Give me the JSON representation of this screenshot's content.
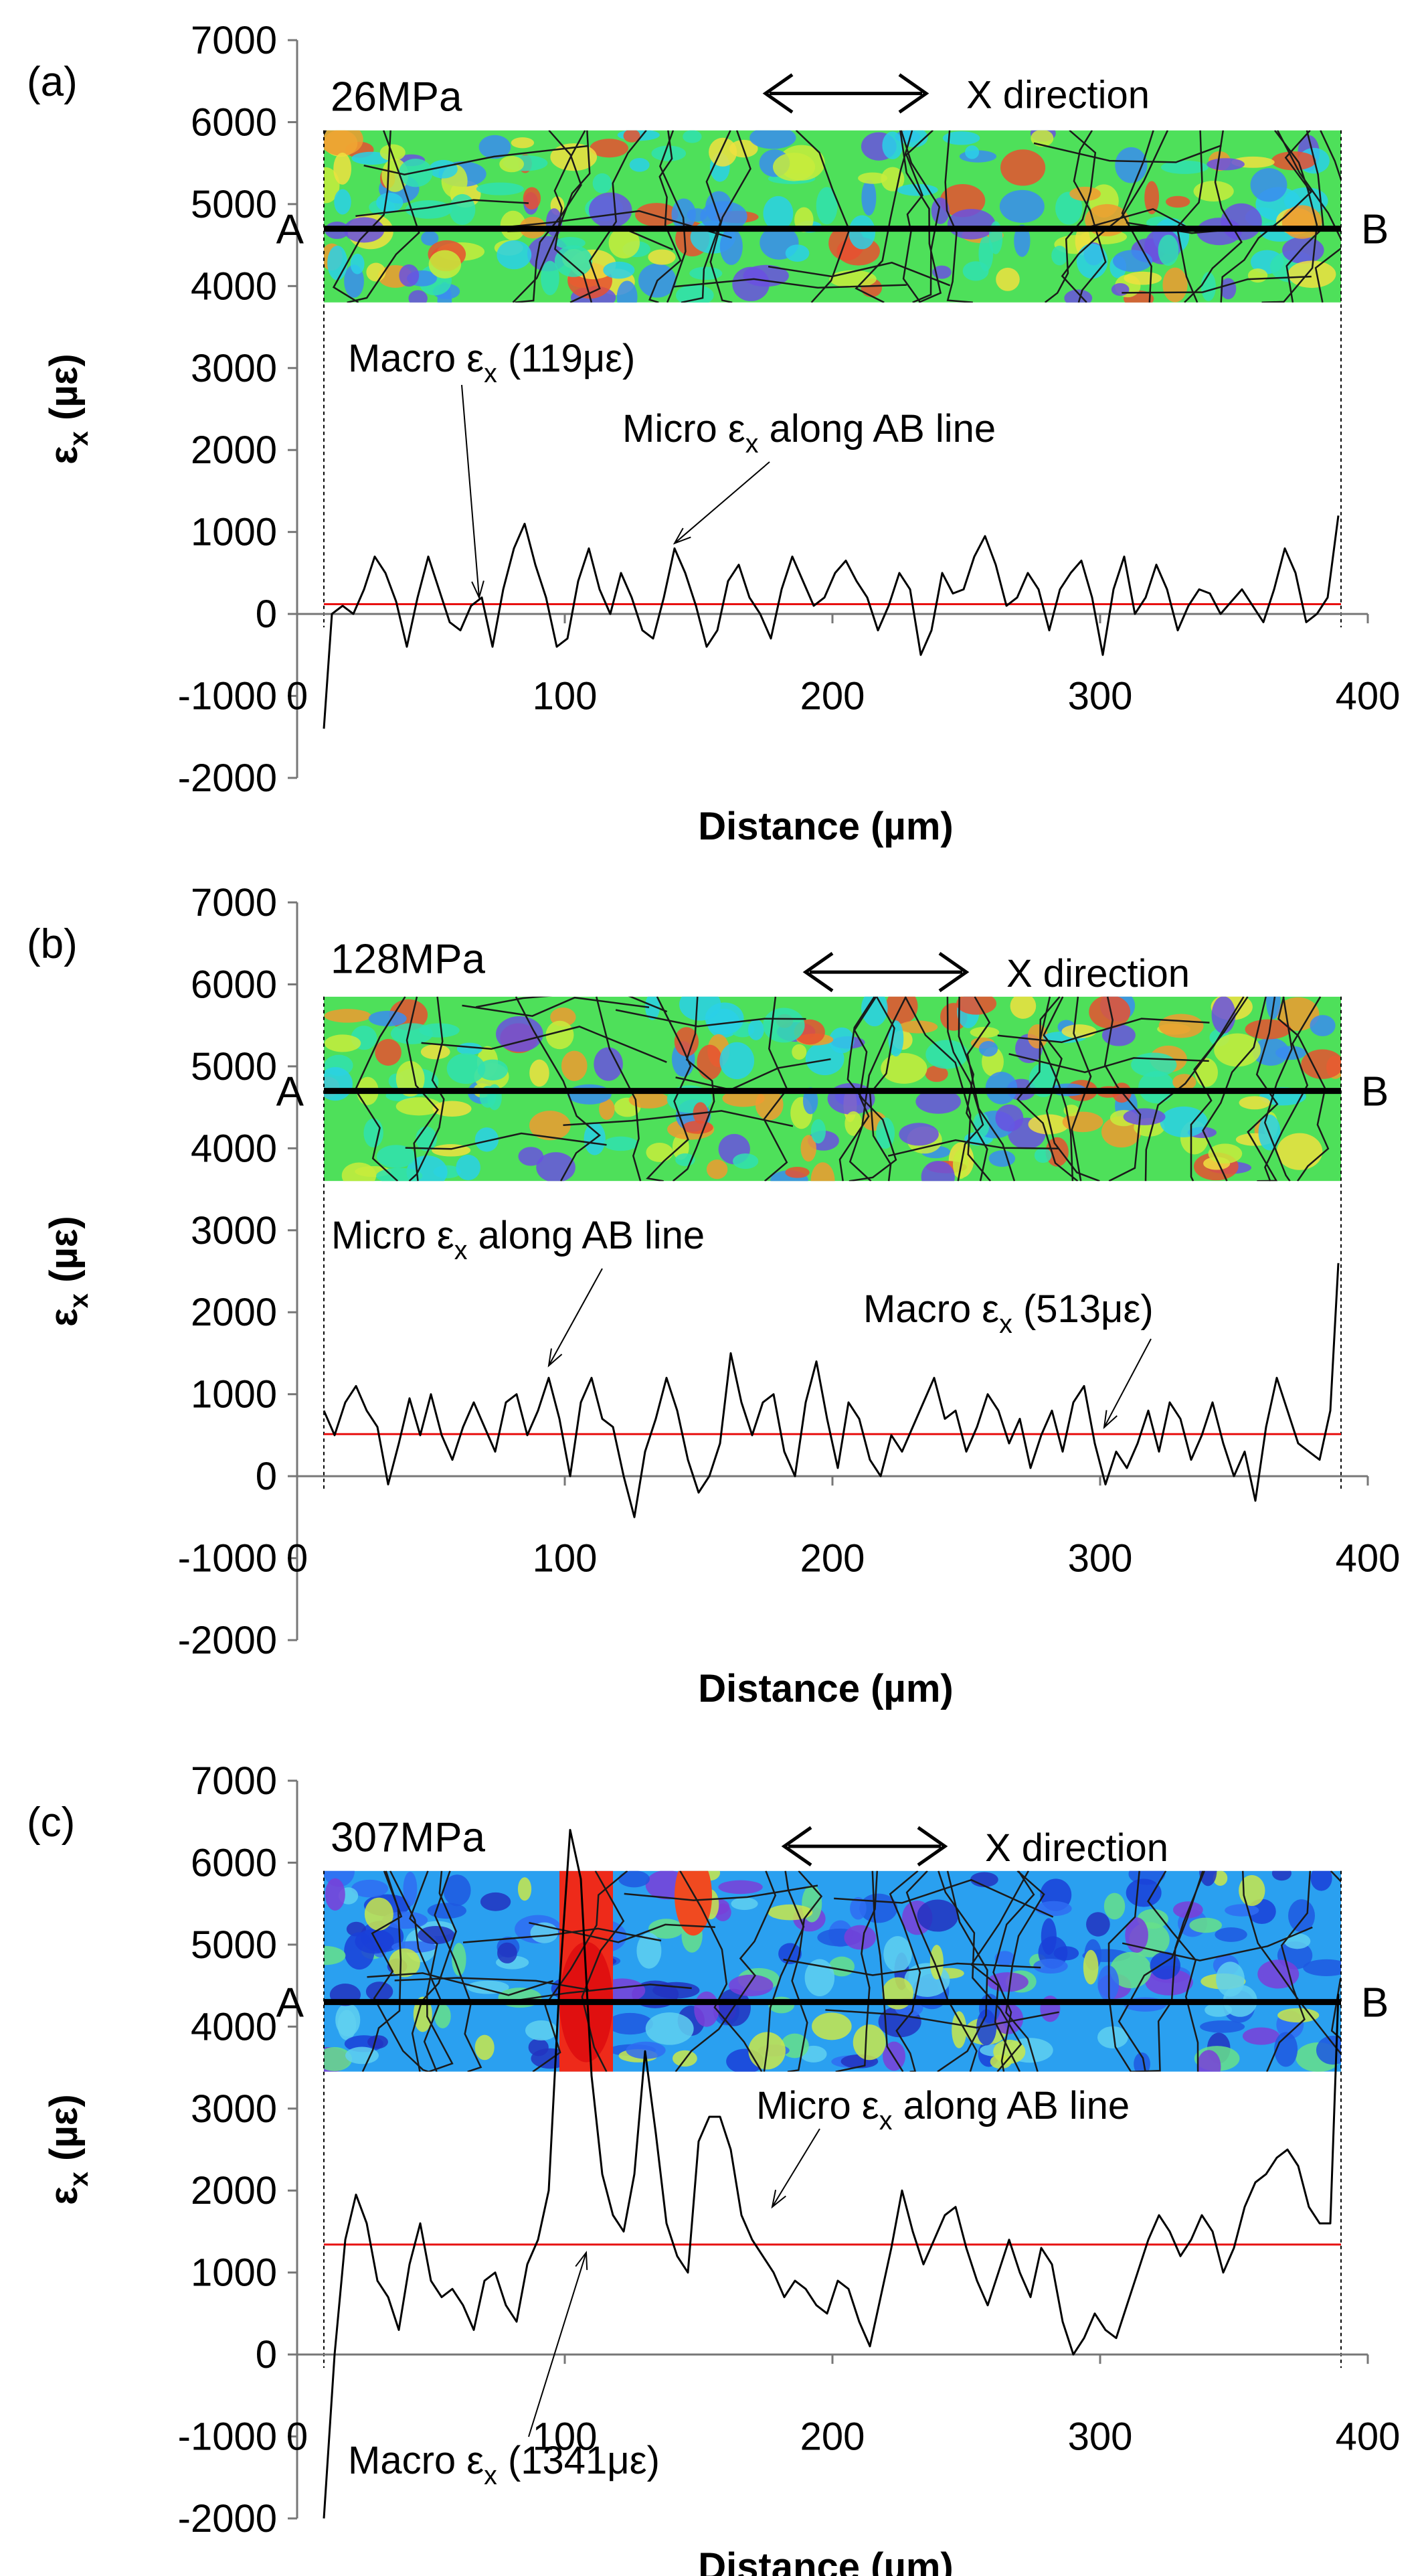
{
  "chart_data": [
    {
      "type": "line",
      "panel": "(a)",
      "stress_label": "26MPa",
      "xlabel": "Distance (µm)",
      "ylabel_main": "ε",
      "ylabel_sub": "x",
      "ylabel_unit": " (µε)",
      "xlim": [
        0,
        400
      ],
      "ylim": [
        -2000,
        7000
      ],
      "x_ticks": [
        0,
        100,
        200,
        300,
        400
      ],
      "y_ticks": [
        7000,
        6000,
        5000,
        4000,
        3000,
        2000,
        1000,
        0,
        -1000,
        -2000
      ],
      "direction_label": "X direction",
      "point_a": "A",
      "point_b": "B",
      "line_start": 10,
      "line_end": 390,
      "map_range": [
        3800,
        5900
      ],
      "ab_line_y": 4700,
      "map_style": "mid",
      "macro": {
        "value": 119,
        "text_main": "Macro ε",
        "text_sub": "x",
        "text_rest": " (119με)"
      },
      "micro_label": {
        "text_main": "Micro ε",
        "text_sub": "x",
        "text_rest": " along AB line"
      },
      "series": [
        {
          "name": "Micro εx along AB line",
          "x": [
            10,
            13,
            17,
            21,
            25,
            29,
            33,
            37,
            41,
            45,
            49,
            53,
            57,
            61,
            65,
            69,
            73,
            77,
            81,
            85,
            89,
            93,
            97,
            101,
            105,
            109,
            113,
            117,
            121,
            125,
            129,
            133,
            137,
            141,
            145,
            149,
            153,
            157,
            161,
            165,
            169,
            173,
            177,
            181,
            185,
            189,
            193,
            197,
            201,
            205,
            209,
            213,
            217,
            221,
            225,
            229,
            233,
            237,
            241,
            245,
            249,
            253,
            257,
            261,
            265,
            269,
            273,
            277,
            281,
            285,
            289,
            293,
            297,
            301,
            305,
            309,
            313,
            317,
            321,
            325,
            329,
            333,
            337,
            341,
            345,
            349,
            353,
            357,
            361,
            365,
            369,
            373,
            377,
            381,
            385,
            389
          ],
          "values": [
            -1400,
            0,
            100,
            0,
            300,
            700,
            500,
            150,
            -400,
            200,
            700,
            300,
            -100,
            -200,
            100,
            200,
            -400,
            300,
            800,
            1100,
            600,
            200,
            -400,
            -300,
            400,
            800,
            300,
            0,
            500,
            200,
            -200,
            -300,
            200,
            800,
            500,
            100,
            -400,
            -200,
            400,
            600,
            200,
            0,
            -300,
            300,
            700,
            400,
            100,
            200,
            500,
            650,
            400,
            200,
            -200,
            100,
            500,
            300,
            -500,
            -200,
            500,
            250,
            300,
            700,
            950,
            600,
            100,
            200,
            500,
            300,
            -200,
            300,
            500,
            650,
            200,
            -500,
            300,
            700,
            0,
            200,
            600,
            300,
            -200,
            100,
            300,
            250,
            0,
            150,
            300,
            100,
            -100,
            300,
            800,
            500,
            -100,
            0,
            200,
            1200
          ]
        }
      ]
    },
    {
      "type": "line",
      "panel": "(b)",
      "stress_label": "128MPa",
      "xlabel": "Distance (µm)",
      "ylabel_main": "ε",
      "ylabel_sub": "x",
      "ylabel_unit": " (µε)",
      "xlim": [
        0,
        400
      ],
      "ylim": [
        -2000,
        7000
      ],
      "x_ticks": [
        0,
        100,
        200,
        300,
        400
      ],
      "y_ticks": [
        7000,
        6000,
        5000,
        4000,
        3000,
        2000,
        1000,
        0,
        -1000,
        -2000
      ],
      "direction_label": "X direction",
      "point_a": "A",
      "point_b": "B",
      "line_start": 10,
      "line_end": 390,
      "map_range": [
        3600,
        5850
      ],
      "ab_line_y": 4700,
      "map_style": "mid",
      "macro": {
        "value": 513,
        "text_main": "Macro ε",
        "text_sub": "x",
        "text_rest": " (513με)"
      },
      "micro_label": {
        "text_main": "Micro ε",
        "text_sub": "x",
        "text_rest": " along AB line"
      },
      "series": [
        {
          "name": "Micro εx along AB line",
          "x": [
            10,
            14,
            18,
            22,
            26,
            30,
            34,
            38,
            42,
            46,
            50,
            54,
            58,
            62,
            66,
            70,
            74,
            78,
            82,
            86,
            90,
            94,
            98,
            102,
            106,
            110,
            114,
            118,
            122,
            126,
            130,
            134,
            138,
            142,
            146,
            150,
            154,
            158,
            162,
            166,
            170,
            174,
            178,
            182,
            186,
            190,
            194,
            198,
            202,
            206,
            210,
            214,
            218,
            222,
            226,
            230,
            234,
            238,
            242,
            246,
            250,
            254,
            258,
            262,
            266,
            270,
            274,
            278,
            282,
            286,
            290,
            294,
            298,
            302,
            306,
            310,
            314,
            318,
            322,
            326,
            330,
            334,
            338,
            342,
            346,
            350,
            354,
            358,
            362,
            366,
            370,
            374,
            378,
            382,
            386,
            389
          ],
          "values": [
            800,
            500,
            900,
            1100,
            800,
            600,
            -100,
            400,
            950,
            500,
            1000,
            500,
            200,
            600,
            900,
            600,
            300,
            900,
            1000,
            500,
            800,
            1200,
            700,
            0,
            900,
            1200,
            700,
            600,
            0,
            -500,
            300,
            700,
            1200,
            800,
            200,
            -200,
            0,
            400,
            1500,
            900,
            500,
            900,
            1000,
            300,
            0,
            900,
            1400,
            700,
            100,
            900,
            700,
            200,
            0,
            500,
            300,
            600,
            900,
            1200,
            700,
            800,
            300,
            600,
            1000,
            800,
            400,
            700,
            100,
            500,
            800,
            300,
            900,
            1100,
            400,
            -100,
            300,
            100,
            400,
            800,
            300,
            900,
            700,
            200,
            500,
            900,
            400,
            0,
            300,
            -300,
            600,
            1200,
            800,
            400,
            300,
            200,
            800,
            2600
          ]
        }
      ]
    },
    {
      "type": "line",
      "panel": "(c)",
      "stress_label": "307MPa",
      "xlabel": "Distance (µm)",
      "ylabel_main": "ε",
      "ylabel_sub": "x",
      "ylabel_unit": " (µε)",
      "xlim": [
        0,
        400
      ],
      "ylim": [
        -2000,
        7000
      ],
      "x_ticks": [
        0,
        100,
        200,
        300,
        400
      ],
      "y_ticks": [
        7000,
        6000,
        5000,
        4000,
        3000,
        2000,
        1000,
        0,
        -1000,
        -2000
      ],
      "direction_label": "X direction",
      "point_a": "A",
      "point_b": "B",
      "line_start": 10,
      "line_end": 390,
      "map_range": [
        3450,
        5900
      ],
      "ab_line_y": 4300,
      "map_style": "cool",
      "macro": {
        "value": 1341,
        "text_main": "Macro ε",
        "text_sub": "x",
        "text_rest": " (1341με)"
      },
      "micro_label": {
        "text_main": "Micro ε",
        "text_sub": "x",
        "text_rest": " along AB line"
      },
      "series": [
        {
          "name": "Micro εx along AB line",
          "x": [
            10,
            14,
            18,
            22,
            26,
            30,
            34,
            38,
            42,
            46,
            50,
            54,
            58,
            62,
            66,
            70,
            74,
            78,
            82,
            86,
            90,
            94,
            98,
            102,
            106,
            110,
            114,
            118,
            122,
            126,
            130,
            134,
            138,
            142,
            146,
            150,
            154,
            158,
            162,
            166,
            170,
            174,
            178,
            182,
            186,
            190,
            194,
            198,
            202,
            206,
            210,
            214,
            218,
            222,
            226,
            230,
            234,
            238,
            242,
            246,
            250,
            254,
            258,
            262,
            266,
            270,
            274,
            278,
            282,
            286,
            290,
            294,
            298,
            302,
            306,
            310,
            314,
            318,
            322,
            326,
            330,
            334,
            338,
            342,
            346,
            350,
            354,
            358,
            362,
            366,
            370,
            374,
            378,
            382,
            386,
            389
          ],
          "values": [
            -2000,
            0,
            1400,
            1950,
            1600,
            900,
            700,
            300,
            1100,
            1600,
            900,
            700,
            800,
            600,
            300,
            900,
            1000,
            600,
            400,
            1100,
            1400,
            2000,
            4500,
            6400,
            5800,
            3400,
            2200,
            1700,
            1500,
            2200,
            3700,
            2700,
            1600,
            1200,
            1000,
            2600,
            2900,
            2900,
            2500,
            1700,
            1400,
            1200,
            1000,
            700,
            900,
            800,
            600,
            500,
            900,
            800,
            400,
            100,
            700,
            1300,
            2000,
            1500,
            1100,
            1400,
            1700,
            1800,
            1300,
            900,
            600,
            1000,
            1400,
            1000,
            700,
            1300,
            1100,
            400,
            0,
            200,
            500,
            300,
            200,
            600,
            1000,
            1400,
            1700,
            1500,
            1200,
            1400,
            1700,
            1500,
            1000,
            1300,
            1800,
            2100,
            2200,
            2400,
            2500,
            2300,
            1800,
            1600,
            1600,
            4400
          ]
        }
      ]
    }
  ]
}
